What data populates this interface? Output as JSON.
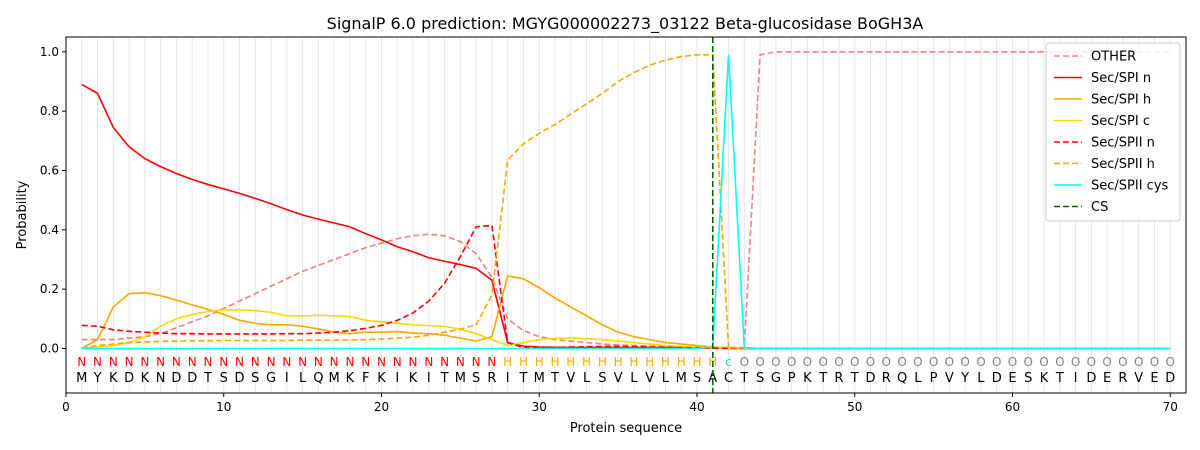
{
  "chart_data": {
    "type": "line",
    "title": "SignalP 6.0 prediction: MGYG000002273_03122 Beta-glucosidase BoGH3A",
    "xlabel": "Protein sequence",
    "ylabel": "Probability",
    "xlim": [
      0,
      71
    ],
    "ylim": [
      -0.15,
      1.05
    ],
    "xticks": [
      0,
      10,
      20,
      30,
      40,
      50,
      60,
      70
    ],
    "yticks": [
      0.0,
      0.2,
      0.4,
      0.6,
      0.8,
      1.0
    ],
    "xtick_labels": [
      "0",
      "10",
      "20",
      "30",
      "40",
      "50",
      "60",
      "70"
    ],
    "ytick_labels": [
      "0.0",
      "0.2",
      "0.4",
      "0.6",
      "0.8",
      "1.0"
    ],
    "grid": "vertical-per-residue",
    "legend_position": "top-right",
    "sequence": [
      "M",
      "Y",
      "K",
      "D",
      "K",
      "N",
      "D",
      "D",
      "T",
      "S",
      "D",
      "S",
      "G",
      "I",
      "L",
      "Q",
      "M",
      "K",
      "F",
      "K",
      "I",
      "K",
      "I",
      "T",
      "M",
      "S",
      "R",
      "I",
      "T",
      "M",
      "T",
      "V",
      "L",
      "S",
      "V",
      "L",
      "V",
      "L",
      "M",
      "S",
      "A",
      "C",
      "T",
      "S",
      "G",
      "P",
      "K",
      "T",
      "R",
      "T",
      "D",
      "R",
      "Q",
      "L",
      "P",
      "V",
      "Y",
      "L",
      "D",
      "E",
      "S",
      "K",
      "T",
      "I",
      "D",
      "E",
      "R",
      "V",
      "E",
      "D"
    ],
    "labels": [
      "N",
      "N",
      "N",
      "N",
      "N",
      "N",
      "N",
      "N",
      "N",
      "N",
      "N",
      "N",
      "N",
      "N",
      "N",
      "N",
      "N",
      "N",
      "N",
      "N",
      "N",
      "N",
      "N",
      "N",
      "N",
      "N",
      "N",
      "H",
      "H",
      "H",
      "H",
      "H",
      "H",
      "H",
      "H",
      "H",
      "H",
      "H",
      "H",
      "H",
      "H",
      "C",
      "O",
      "O",
      "O",
      "O",
      "O",
      "O",
      "O",
      "O",
      "O",
      "O",
      "O",
      "O",
      "O",
      "O",
      "O",
      "O",
      "O",
      "O",
      "O",
      "O",
      "O",
      "O",
      "O",
      "O",
      "O",
      "O",
      "O",
      "O"
    ],
    "label_colors": {
      "N": "#ff0000",
      "H": "#ffa500",
      "C": "#00e5ee",
      "O": "#808080"
    },
    "x": [
      1,
      2,
      3,
      4,
      5,
      6,
      7,
      8,
      9,
      10,
      11,
      12,
      13,
      14,
      15,
      16,
      17,
      18,
      19,
      20,
      21,
      22,
      23,
      24,
      25,
      26,
      27,
      28,
      29,
      30,
      31,
      32,
      33,
      34,
      35,
      36,
      37,
      38,
      39,
      40,
      41,
      42,
      43,
      44,
      45,
      46,
      47,
      48,
      49,
      50,
      51,
      52,
      53,
      54,
      55,
      56,
      57,
      58,
      59,
      60,
      61,
      62,
      63,
      64,
      65,
      66,
      67,
      68,
      69,
      70
    ],
    "cs_position": 41,
    "series": [
      {
        "name": "OTHER",
        "color": "#f08080",
        "dash": "dashed",
        "values": [
          0.03,
          0.03,
          0.03,
          0.035,
          0.04,
          0.05,
          0.07,
          0.09,
          0.11,
          0.135,
          0.16,
          0.185,
          0.21,
          0.235,
          0.26,
          0.28,
          0.3,
          0.32,
          0.34,
          0.355,
          0.37,
          0.38,
          0.385,
          0.38,
          0.36,
          0.32,
          0.24,
          0.1,
          0.06,
          0.04,
          0.03,
          0.025,
          0.02,
          0.015,
          0.012,
          0.01,
          0.008,
          0.006,
          0.005,
          0.004,
          0.003,
          0.003,
          0.003,
          0.99,
          1.0,
          1.0,
          1.0,
          1.0,
          1.0,
          1.0,
          1.0,
          1.0,
          1.0,
          1.0,
          1.0,
          1.0,
          1.0,
          1.0,
          1.0,
          1.0,
          1.0,
          1.0,
          1.0,
          1.0,
          1.0,
          1.0,
          1.0,
          1.0,
          1.0,
          1.0
        ]
      },
      {
        "name": "Sec/SPI n",
        "color": "#ff0000",
        "dash": "solid",
        "values": [
          0.89,
          0.86,
          0.745,
          0.68,
          0.64,
          0.613,
          0.59,
          0.57,
          0.553,
          0.538,
          0.523,
          0.506,
          0.488,
          0.468,
          0.45,
          0.436,
          0.423,
          0.41,
          0.387,
          0.366,
          0.343,
          0.326,
          0.306,
          0.294,
          0.283,
          0.27,
          0.23,
          0.02,
          0.008,
          0.005,
          0.004,
          0.003,
          0.003,
          0.003,
          0.003,
          0.003,
          0.003,
          0.003,
          0.003,
          0.002,
          0.002,
          0.001,
          0.0,
          0.0,
          0.0,
          0.0,
          0.0,
          0.0,
          0.0,
          0.0,
          0.0,
          0.0,
          0.0,
          0.0,
          0.0,
          0.0,
          0.0,
          0.0,
          0.0,
          0.0,
          0.0,
          0.0,
          0.0,
          0.0,
          0.0,
          0.0,
          0.0,
          0.0,
          0.0,
          0.0
        ]
      },
      {
        "name": "Sec/SPI h",
        "color": "#ffa500",
        "dash": "solid",
        "values": [
          0.0,
          0.03,
          0.14,
          0.185,
          0.188,
          0.178,
          0.163,
          0.147,
          0.132,
          0.115,
          0.095,
          0.085,
          0.08,
          0.08,
          0.075,
          0.066,
          0.055,
          0.05,
          0.055,
          0.055,
          0.057,
          0.052,
          0.05,
          0.045,
          0.035,
          0.025,
          0.04,
          0.245,
          0.235,
          0.205,
          0.17,
          0.14,
          0.11,
          0.08,
          0.055,
          0.04,
          0.03,
          0.02,
          0.015,
          0.01,
          0.005,
          0.002,
          0.001,
          0.0,
          0.0,
          0.0,
          0.0,
          0.0,
          0.0,
          0.0,
          0.0,
          0.0,
          0.0,
          0.0,
          0.0,
          0.0,
          0.0,
          0.0,
          0.0,
          0.0,
          0.0,
          0.0,
          0.0,
          0.0,
          0.0,
          0.0,
          0.0,
          0.0,
          0.0,
          0.0
        ]
      },
      {
        "name": "Sec/SPI c",
        "color": "#ffd700",
        "dash": "solid",
        "values": [
          0.0,
          0.005,
          0.01,
          0.02,
          0.04,
          0.075,
          0.1,
          0.115,
          0.125,
          0.13,
          0.13,
          0.128,
          0.122,
          0.11,
          0.11,
          0.112,
          0.11,
          0.108,
          0.095,
          0.09,
          0.085,
          0.08,
          0.077,
          0.075,
          0.065,
          0.05,
          0.03,
          0.01,
          0.02,
          0.03,
          0.035,
          0.035,
          0.033,
          0.03,
          0.025,
          0.02,
          0.015,
          0.01,
          0.007,
          0.004,
          0.002,
          0.001,
          0.0,
          0.0,
          0.0,
          0.0,
          0.0,
          0.0,
          0.0,
          0.0,
          0.0,
          0.0,
          0.0,
          0.0,
          0.0,
          0.0,
          0.0,
          0.0,
          0.0,
          0.0,
          0.0,
          0.0,
          0.0,
          0.0,
          0.0,
          0.0,
          0.0,
          0.0,
          0.0,
          0.0
        ]
      },
      {
        "name": "Sec/SPII n",
        "color": "#ff0000",
        "dash": "dashed",
        "values": [
          0.078,
          0.075,
          0.063,
          0.058,
          0.055,
          0.052,
          0.05,
          0.05,
          0.049,
          0.049,
          0.049,
          0.049,
          0.049,
          0.05,
          0.05,
          0.052,
          0.055,
          0.06,
          0.068,
          0.078,
          0.095,
          0.12,
          0.16,
          0.22,
          0.31,
          0.41,
          0.415,
          0.02,
          0.003,
          0.003,
          0.003,
          0.005,
          0.006,
          0.007,
          0.007,
          0.006,
          0.005,
          0.004,
          0.003,
          0.002,
          0.001,
          0.0,
          0.0,
          0.0,
          0.0,
          0.0,
          0.0,
          0.0,
          0.0,
          0.0,
          0.0,
          0.0,
          0.0,
          0.0,
          0.0,
          0.0,
          0.0,
          0.0,
          0.0,
          0.0,
          0.0,
          0.0,
          0.0,
          0.0,
          0.0,
          0.0,
          0.0,
          0.0,
          0.0,
          0.0
        ]
      },
      {
        "name": "Sec/SPII h",
        "color": "#ffa500",
        "dash": "dashed",
        "values": [
          0.0,
          0.01,
          0.015,
          0.02,
          0.022,
          0.024,
          0.025,
          0.026,
          0.026,
          0.027,
          0.027,
          0.027,
          0.027,
          0.027,
          0.028,
          0.028,
          0.028,
          0.029,
          0.03,
          0.032,
          0.035,
          0.038,
          0.045,
          0.055,
          0.065,
          0.08,
          0.18,
          0.635,
          0.69,
          0.725,
          0.755,
          0.79,
          0.825,
          0.86,
          0.9,
          0.93,
          0.955,
          0.972,
          0.984,
          0.99,
          0.99,
          0.003,
          0.001,
          0.0,
          0.0,
          0.0,
          0.0,
          0.0,
          0.0,
          0.0,
          0.0,
          0.0,
          0.0,
          0.0,
          0.0,
          0.0,
          0.0,
          0.0,
          0.0,
          0.0,
          0.0,
          0.0,
          0.0,
          0.0,
          0.0,
          0.0,
          0.0,
          0.0,
          0.0,
          0.0
        ]
      },
      {
        "name": "Sec/SPII cys",
        "color": "#00ffff",
        "dash": "solid",
        "values": [
          0.0,
          0.0,
          0.0,
          0.0,
          0.0,
          0.0,
          0.0,
          0.0,
          0.0,
          0.0,
          0.0,
          0.0,
          0.0,
          0.0,
          0.0,
          0.0,
          0.0,
          0.0,
          0.0,
          0.0,
          0.0,
          0.0,
          0.0,
          0.0,
          0.0,
          0.0,
          0.0,
          0.0,
          0.0,
          0.0,
          0.0,
          0.0,
          0.0,
          0.0,
          0.0,
          0.0,
          0.0,
          0.0,
          0.0,
          0.0,
          0.005,
          0.99,
          0.003,
          0.0,
          0.0,
          0.0,
          0.0,
          0.0,
          0.0,
          0.0,
          0.0,
          0.0,
          0.0,
          0.0,
          0.0,
          0.0,
          0.0,
          0.0,
          0.0,
          0.0,
          0.0,
          0.0,
          0.0,
          0.0,
          0.0,
          0.0,
          0.0,
          0.0,
          0.0,
          0.0
        ]
      }
    ],
    "cs_legend": {
      "name": "CS",
      "color": "#006400",
      "dash": "dashed"
    }
  }
}
